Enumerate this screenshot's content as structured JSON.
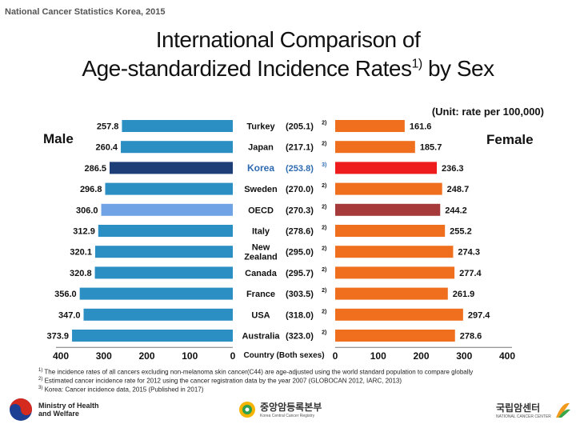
{
  "header_note": "National Cancer Statistics Korea, 2015",
  "title_line1": "International Comparison of",
  "title_line2": "Age-standardized Incidence Rates",
  "title_sup": "1)",
  "title_line2_tail": " by Sex",
  "unit": "(Unit: rate per 100,000)",
  "male_label": "Male",
  "female_label": "Female",
  "footnotes": [
    {
      "sup": "1)",
      "text": "The incidence rates of all cancers excluding non-melanoma skin cancer(C44) are age-adjusted using the world standard population to compare globally"
    },
    {
      "sup": "2)",
      "text": "Estimated cancer incidence rate for 2012 using the cancer registration data by the year 2007 (GLOBOCAN 2012, IARC, 2013)"
    },
    {
      "sup": "3)",
      "text": "Korea: Cancer incidence data, 2015 (Published in 2017)"
    }
  ],
  "logos": {
    "ministry_line1": "Ministry of Health",
    "ministry_line2": "and Welfare",
    "registry_kr": "중앙암등록본부",
    "registry_en": "Korea Central Cancer Registry",
    "ncc_kr": "국립암센터",
    "ncc_en": "NATIONAL CANCER CENTER"
  },
  "colors": {
    "male_bar": "#2b8fc4",
    "male_korea": "#1e3e78",
    "male_oecd": "#6fa3e6",
    "female_bar": "#ef6f1e",
    "female_korea": "#ee1c1c",
    "female_oecd": "#a63a3a"
  },
  "chart_data": {
    "type": "bar",
    "layout": "population-pyramid",
    "center_header": "Country (Both sexes)",
    "axis_ticks_male": [
      "400",
      "300",
      "200",
      "100",
      "0"
    ],
    "axis_ticks_female": [
      "0",
      "100",
      "200",
      "300",
      "400"
    ],
    "xlim": [
      0,
      400
    ],
    "categories": [
      {
        "country": "Turkey",
        "both": "(205.1)",
        "both_sup": "2)",
        "male": 257.8,
        "male_label": "257.8",
        "female": 161.6,
        "female_label": "161.6",
        "kind": "normal"
      },
      {
        "country": "Japan",
        "both": "(217.1)",
        "both_sup": "2)",
        "male": 260.4,
        "male_label": "260.4",
        "female": 185.7,
        "female_label": "185.7",
        "kind": "normal"
      },
      {
        "country": "Korea",
        "both": "(253.8)",
        "both_sup": "3)",
        "male": 286.5,
        "male_label": "286.5",
        "female": 236.3,
        "female_label": "236.3",
        "kind": "korea"
      },
      {
        "country": "Sweden",
        "both": "(270.0)",
        "both_sup": "2)",
        "male": 296.8,
        "male_label": "296.8",
        "female": 248.7,
        "female_label": "248.7",
        "kind": "normal"
      },
      {
        "country": "OECD",
        "both": "(270.3)",
        "both_sup": "2)",
        "male": 306.0,
        "male_label": "306.0",
        "female": 244.2,
        "female_label": "244.2",
        "kind": "oecd"
      },
      {
        "country": "Italy",
        "both": "(278.6)",
        "both_sup": "2)",
        "male": 312.9,
        "male_label": "312.9",
        "female": 255.2,
        "female_label": "255.2",
        "kind": "normal"
      },
      {
        "country": "New Zealand",
        "both": "(295.0)",
        "both_sup": "2)",
        "male": 320.1,
        "male_label": "320.1",
        "female": 274.3,
        "female_label": "274.3",
        "kind": "normal"
      },
      {
        "country": "Canada",
        "both": "(295.7)",
        "both_sup": "2)",
        "male": 320.8,
        "male_label": "320.8",
        "female": 277.4,
        "female_label": "277.4",
        "kind": "normal"
      },
      {
        "country": "France",
        "both": "(303.5)",
        "both_sup": "2)",
        "male": 356.0,
        "male_label": "356.0",
        "female": 261.9,
        "female_label": "261.9",
        "kind": "normal"
      },
      {
        "country": "USA",
        "both": "(318.0)",
        "both_sup": "2)",
        "male": 347.0,
        "male_label": "347.0",
        "female": 297.4,
        "female_label": "297.4",
        "kind": "normal"
      },
      {
        "country": "Australia",
        "both": "(323.0)",
        "both_sup": "2)",
        "male": 373.9,
        "male_label": "373.9",
        "female": 278.6,
        "female_label": "278.6",
        "kind": "normal"
      }
    ]
  }
}
